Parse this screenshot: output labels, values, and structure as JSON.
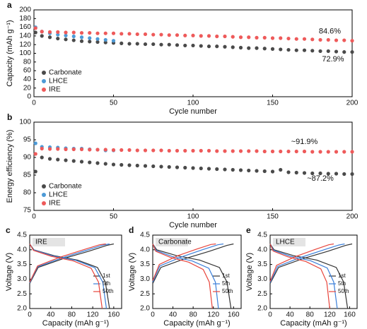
{
  "chart_data": [
    {
      "type": "scatter",
      "panel_label": "a",
      "x_label": "Cycle number",
      "y_label": "Capacity (mAh g⁻¹)",
      "xlim": [
        0,
        200
      ],
      "xticks": [
        0,
        50,
        100,
        150,
        200
      ],
      "ylim": [
        0,
        200
      ],
      "yticks": [
        0,
        20,
        40,
        60,
        80,
        100,
        120,
        140,
        160,
        180,
        200
      ],
      "legend": "lower left",
      "annotations": [
        "84.6%",
        "72.9%"
      ],
      "x": [
        1,
        5,
        10,
        15,
        20,
        25,
        30,
        35,
        40,
        45,
        50,
        55,
        60,
        65,
        70,
        75,
        80,
        85,
        90,
        95,
        100,
        105,
        110,
        115,
        120,
        125,
        130,
        135,
        140,
        145,
        150,
        155,
        160,
        165,
        170,
        175,
        180,
        185,
        190,
        195,
        200
      ],
      "series": [
        {
          "name": "Carbonate",
          "color": "#4a4a4a",
          "values": [
            148,
            140,
            137,
            134,
            132,
            130,
            128,
            127,
            126,
            125,
            124,
            123,
            122,
            122,
            121,
            121,
            120,
            120,
            119,
            118,
            118,
            117,
            116,
            116,
            115,
            114,
            113,
            112,
            112,
            111,
            110,
            109,
            108,
            107,
            107,
            106,
            105,
            105,
            104,
            103,
            103
          ]
        },
        {
          "name": "LHCE",
          "color": "#4d9ad6",
          "values": [
            160,
            150,
            146,
            143,
            141,
            139,
            137,
            135,
            133,
            131,
            129,
            null,
            null,
            null,
            null,
            null,
            null,
            null,
            null,
            null,
            null,
            null,
            null,
            null,
            null,
            null,
            null,
            null,
            null,
            null,
            null,
            null,
            null,
            null,
            null,
            null,
            null,
            null,
            null,
            null,
            null
          ]
        },
        {
          "name": "IRE",
          "color": "#ee5a5a",
          "values": [
            158,
            150,
            149,
            149,
            148,
            148,
            147,
            147,
            146,
            146,
            146,
            145,
            145,
            144,
            144,
            143,
            143,
            142,
            142,
            141,
            141,
            140,
            140,
            139,
            139,
            138,
            137,
            137,
            136,
            136,
            135,
            135,
            134,
            133,
            133,
            132,
            131,
            131,
            130,
            130,
            129
          ]
        }
      ]
    },
    {
      "type": "scatter",
      "panel_label": "b",
      "x_label": "Cycle number",
      "y_label": "Energy efficiency (%)",
      "xlim": [
        0,
        200
      ],
      "xticks": [
        0,
        50,
        100,
        150,
        200
      ],
      "ylim": [
        75,
        100
      ],
      "yticks": [
        75,
        80,
        85,
        90,
        95,
        100
      ],
      "legend": "lower left",
      "annotations": [
        "~91.9%",
        "~87.2%"
      ],
      "x": [
        1,
        5,
        10,
        15,
        20,
        25,
        30,
        35,
        40,
        45,
        50,
        55,
        60,
        65,
        70,
        75,
        80,
        85,
        90,
        95,
        100,
        105,
        110,
        115,
        120,
        125,
        130,
        135,
        140,
        145,
        150,
        155,
        160,
        165,
        170,
        175,
        180,
        185,
        190,
        195,
        200
      ],
      "series": [
        {
          "name": "Carbonate",
          "color": "#4a4a4a",
          "values": [
            86,
            90,
            89.6,
            89.4,
            89.2,
            89,
            88.8,
            88.6,
            88.4,
            88.2,
            88,
            87.9,
            87.8,
            87.7,
            87.6,
            87.5,
            87.4,
            87.3,
            87.2,
            87.1,
            87,
            86.9,
            86.8,
            86.7,
            86.6,
            86.5,
            86.4,
            86.3,
            86.2,
            86.1,
            86,
            86.5,
            85.8,
            85.7,
            85.6,
            85.5,
            85.5,
            85.4,
            85.4,
            85.3,
            85.3
          ]
        },
        {
          "name": "LHCE",
          "color": "#4d9ad6",
          "values": [
            94,
            93,
            92.9,
            92.8,
            92.6,
            92.5,
            92.5,
            92.3,
            92.2,
            92,
            92,
            null,
            null,
            null,
            null,
            null,
            null,
            null,
            null,
            null,
            null,
            null,
            null,
            null,
            null,
            null,
            null,
            null,
            null,
            null,
            null,
            null,
            null,
            null,
            null,
            null,
            null,
            null,
            null,
            null,
            null
          ]
        },
        {
          "name": "IRE",
          "color": "#ee5a5a",
          "values": [
            91,
            92.5,
            92.4,
            92.4,
            92.3,
            92.3,
            92.3,
            92.2,
            92.2,
            92.2,
            92.1,
            92.1,
            92.1,
            92,
            92,
            92,
            92,
            91.9,
            91.9,
            91.9,
            91.9,
            91.9,
            91.9,
            91.8,
            91.8,
            91.8,
            91.8,
            91.8,
            91.8,
            91.7,
            91.7,
            91.7,
            91.7,
            91.7,
            91.7,
            91.6,
            91.6,
            91.6,
            91.6,
            91.6,
            91.6
          ]
        }
      ]
    },
    {
      "type": "line",
      "panel_label": "c",
      "label": "IRE",
      "x_label": "Capacity (mAh g⁻¹)",
      "y_label": "Voltage (V)",
      "xlim": [
        0,
        175
      ],
      "xticks": [
        0,
        40,
        80,
        120,
        160
      ],
      "ylim": [
        2,
        4.5
      ],
      "yticks": [
        {
          "value": 2,
          "label": "2.0"
        },
        {
          "value": 2.5,
          "label": "2.5"
        },
        {
          "value": 3,
          "label": "3.0"
        },
        {
          "value": 3.5,
          "label": "3.5"
        },
        {
          "value": 4,
          "label": "4.0"
        },
        {
          "value": 4.5,
          "label": "4.5"
        }
      ],
      "legend": "center right",
      "series": [
        {
          "name": "1st",
          "color": "#333333",
          "x": [
            0,
            16,
            64,
            112,
            147,
            160,
            null,
            0,
            8,
            46,
            91,
            129,
            144,
            152
          ],
          "values": [
            2.85,
            3.4,
            3.7,
            3.95,
            4.15,
            4.2,
            null,
            4.2,
            4.0,
            3.8,
            3.65,
            3.4,
            2.9,
            2.0
          ]
        },
        {
          "name": "5th",
          "color": "#3b7fd9",
          "x": [
            0,
            15,
            61,
            106,
            140,
            152,
            null,
            0,
            7,
            44,
            88,
            124,
            139,
            146
          ],
          "values": [
            2.87,
            3.42,
            3.72,
            3.97,
            4.16,
            4.2,
            null,
            4.2,
            4.0,
            3.79,
            3.64,
            3.39,
            2.9,
            2.0
          ]
        },
        {
          "name": "50th",
          "color": "#e8453c",
          "x": [
            0,
            15,
            58,
            102,
            133,
            145,
            null,
            0,
            7,
            41,
            83,
            117,
            131,
            138
          ],
          "values": [
            2.9,
            3.45,
            3.75,
            4.0,
            4.17,
            4.2,
            null,
            4.2,
            3.98,
            3.78,
            3.62,
            3.37,
            2.9,
            2.0
          ]
        }
      ]
    },
    {
      "type": "line",
      "panel_label": "d",
      "label": "Carbonate",
      "x_label": "Capacity (mAh g⁻¹)",
      "y_label": "Voltage (V)",
      "xlim": [
        0,
        175
      ],
      "xticks": [
        0,
        40,
        80,
        120,
        160
      ],
      "ylim": [
        2,
        4.5
      ],
      "yticks": [
        {
          "value": 2,
          "label": "2.0"
        },
        {
          "value": 2.5,
          "label": "2.5"
        },
        {
          "value": 3,
          "label": "3.0"
        },
        {
          "value": 3.5,
          "label": "3.5"
        },
        {
          "value": 4,
          "label": "4.0"
        },
        {
          "value": 4.5,
          "label": "4.5"
        }
      ],
      "legend": "center right",
      "series": [
        {
          "name": "1st",
          "color": "#333333",
          "x": [
            0,
            16,
            64,
            112,
            147,
            160,
            null,
            0,
            8,
            47,
            93,
            132,
            147,
            155
          ],
          "values": [
            2.85,
            3.4,
            3.7,
            3.95,
            4.15,
            4.2,
            null,
            4.2,
            4.0,
            3.8,
            3.65,
            3.4,
            2.9,
            2.0
          ]
        },
        {
          "name": "5th",
          "color": "#3b7fd9",
          "x": [
            0,
            14,
            56,
            98,
            129,
            140,
            null,
            0,
            7,
            39,
            78,
            111,
            124,
            130
          ],
          "values": [
            2.9,
            3.45,
            3.75,
            4.0,
            4.17,
            4.2,
            null,
            4.2,
            3.97,
            3.77,
            3.62,
            3.37,
            2.9,
            2.0
          ]
        },
        {
          "name": "50th",
          "color": "#e8453c",
          "x": [
            0,
            13,
            50,
            88,
            115,
            125,
            null,
            0,
            6,
            35,
            71,
            100,
            112,
            118
          ],
          "values": [
            2.95,
            3.5,
            3.8,
            4.03,
            4.18,
            4.2,
            null,
            4.2,
            3.95,
            3.74,
            3.58,
            3.33,
            2.9,
            2.0
          ]
        }
      ]
    },
    {
      "type": "line",
      "panel_label": "e",
      "label": "LHCE",
      "x_label": "Capacity (mAh g⁻¹)",
      "y_label": "Voltage (V)",
      "xlim": [
        0,
        175
      ],
      "xticks": [
        0,
        40,
        80,
        120,
        160
      ],
      "ylim": [
        2,
        4.5
      ],
      "yticks": [
        {
          "value": 2,
          "label": "2.0"
        },
        {
          "value": 2.5,
          "label": "2.5"
        },
        {
          "value": 3,
          "label": "3.0"
        },
        {
          "value": 3.5,
          "label": "3.5"
        },
        {
          "value": 4,
          "label": "4.0"
        },
        {
          "value": 4.5,
          "label": "4.5"
        }
      ],
      "legend": "center right",
      "series": [
        {
          "name": "1st",
          "color": "#333333",
          "x": [
            0,
            17,
            66,
            116,
            152,
            165,
            null,
            0,
            8,
            47,
            94,
            133,
            148,
            156
          ],
          "values": [
            2.85,
            3.4,
            3.7,
            3.95,
            4.15,
            4.2,
            null,
            4.2,
            4.0,
            3.8,
            3.65,
            3.4,
            2.9,
            2.0
          ]
        },
        {
          "name": "5th",
          "color": "#3b7fd9",
          "x": [
            0,
            15,
            60,
            105,
            138,
            150,
            null,
            0,
            7,
            41,
            81,
            115,
            128,
            135
          ],
          "values": [
            2.88,
            3.43,
            3.73,
            3.98,
            4.16,
            4.2,
            null,
            4.2,
            3.98,
            3.78,
            3.63,
            3.38,
            2.9,
            2.0
          ]
        },
        {
          "name": "50th",
          "color": "#e8453c",
          "x": [
            0,
            13,
            51,
            90,
            118,
            128,
            null,
            0,
            6,
            36,
            72,
            102,
            114,
            120
          ],
          "values": [
            2.92,
            3.47,
            3.77,
            4.01,
            4.17,
            4.2,
            null,
            4.2,
            3.96,
            3.76,
            3.6,
            3.35,
            2.9,
            2.0
          ]
        }
      ]
    }
  ]
}
